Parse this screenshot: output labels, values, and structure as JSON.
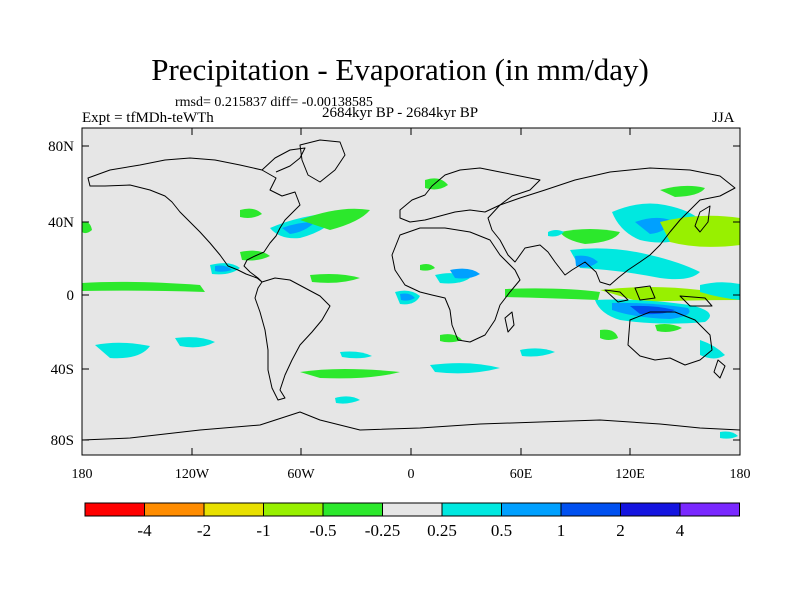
{
  "title": "Precipitation - Evaporation (in mm/day)",
  "stats": "rmsd= 0.215837 diff= -0.00138585",
  "experiment": "Expt = tfMDh-teWTh",
  "period": "2684kyr BP - 2684kyr BP",
  "season": "JJA",
  "lat_labels": [
    "80N",
    "40N",
    "0",
    "40S",
    "80S"
  ],
  "lon_labels": [
    "180",
    "120W",
    "60W",
    "0",
    "60E",
    "120E",
    "180"
  ],
  "colorbar": {
    "colors": [
      "#ff0000",
      "#ff8c00",
      "#e8e000",
      "#98f000",
      "#2ce82c",
      "#e6e6e6",
      "#00e8e0",
      "#00a0ff",
      "#0050f0",
      "#1414e0",
      "#7a28ff"
    ],
    "labels": [
      "-4",
      "-2",
      "-1",
      "-0.5",
      "-0.25",
      "0.25",
      "0.5",
      "1",
      "2",
      "4"
    ]
  },
  "colors": {
    "ocean": "#e6e6e6",
    "positive_light": "#2ce82c",
    "positive_strong": "#98f000",
    "negative_light": "#00e8e0",
    "negative_mid": "#00a0ff",
    "negative_strong": "#0050f0"
  }
}
